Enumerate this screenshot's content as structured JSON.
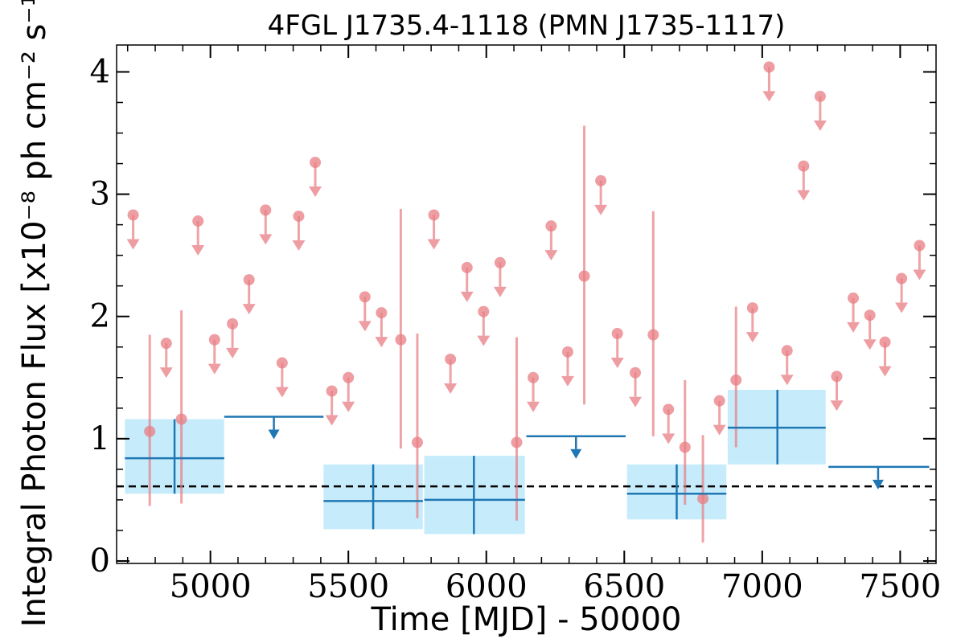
{
  "chart_data": {
    "type": "scatter",
    "title": "4FGL J1735.4-1118 (PMN J1735-1117)",
    "xlabel": "Time [MJD] - 50000",
    "ylabel": "Integral Photon Flux [x10⁻⁸ ph cm⁻² s⁻¹]",
    "xlim": [
      4660,
      7630
    ],
    "ylim": [
      -0.02,
      4.22
    ],
    "x_ticks": [
      5000,
      5500,
      6000,
      6500,
      7000,
      7500
    ],
    "x_tick_labels": [
      "5000",
      "5500",
      "6000",
      "6500",
      "7000",
      "7500"
    ],
    "y_ticks": [
      0,
      1,
      2,
      3,
      4
    ],
    "y_tick_labels": [
      "0",
      "1",
      "2",
      "3",
      "4"
    ],
    "grid": false,
    "mean_flux": 0.61,
    "colors": {
      "short_bins": "#e87d83",
      "long_bins": "#1f77b4",
      "long_bin_band": "#c6ecfb",
      "mean_line": "#000000"
    },
    "short_bin_detections": [
      {
        "x": 4780,
        "y": 1.06,
        "ylo": 0.45,
        "yhi": 1.85
      },
      {
        "x": 4895,
        "y": 1.16,
        "ylo": 0.47,
        "yhi": 2.05
      },
      {
        "x": 5690,
        "y": 1.81,
        "ylo": 0.92,
        "yhi": 2.88
      },
      {
        "x": 5750,
        "y": 0.97,
        "ylo": 0.35,
        "yhi": 1.86
      },
      {
        "x": 6110,
        "y": 0.97,
        "ylo": 0.33,
        "yhi": 1.83
      },
      {
        "x": 6355,
        "y": 2.33,
        "ylo": 1.28,
        "yhi": 3.56
      },
      {
        "x": 6605,
        "y": 1.85,
        "ylo": 1.02,
        "yhi": 2.86
      },
      {
        "x": 6720,
        "y": 0.93,
        "ylo": 0.46,
        "yhi": 1.48
      },
      {
        "x": 6785,
        "y": 0.51,
        "ylo": 0.15,
        "yhi": 1.03
      },
      {
        "x": 6905,
        "y": 1.48,
        "ylo": 0.93,
        "yhi": 2.08
      }
    ],
    "short_bin_upper_limits": [
      {
        "x": 4720,
        "y": 2.83
      },
      {
        "x": 4840,
        "y": 1.78
      },
      {
        "x": 4955,
        "y": 2.78
      },
      {
        "x": 5015,
        "y": 1.81
      },
      {
        "x": 5080,
        "y": 1.94
      },
      {
        "x": 5140,
        "y": 2.3
      },
      {
        "x": 5200,
        "y": 2.87
      },
      {
        "x": 5260,
        "y": 1.62
      },
      {
        "x": 5320,
        "y": 2.82
      },
      {
        "x": 5380,
        "y": 3.26
      },
      {
        "x": 5440,
        "y": 1.39
      },
      {
        "x": 5500,
        "y": 1.5
      },
      {
        "x": 5560,
        "y": 2.16
      },
      {
        "x": 5620,
        "y": 2.03
      },
      {
        "x": 5810,
        "y": 2.83
      },
      {
        "x": 5870,
        "y": 1.65
      },
      {
        "x": 5930,
        "y": 2.4
      },
      {
        "x": 5990,
        "y": 2.04
      },
      {
        "x": 6050,
        "y": 2.44
      },
      {
        "x": 6170,
        "y": 1.5
      },
      {
        "x": 6235,
        "y": 2.74
      },
      {
        "x": 6295,
        "y": 1.71
      },
      {
        "x": 6415,
        "y": 3.11
      },
      {
        "x": 6475,
        "y": 1.86
      },
      {
        "x": 6540,
        "y": 1.54
      },
      {
        "x": 6660,
        "y": 1.24
      },
      {
        "x": 6845,
        "y": 1.31
      },
      {
        "x": 6965,
        "y": 2.07
      },
      {
        "x": 7025,
        "y": 4.04
      },
      {
        "x": 7090,
        "y": 1.72
      },
      {
        "x": 7150,
        "y": 3.23
      },
      {
        "x": 7210,
        "y": 3.8
      },
      {
        "x": 7270,
        "y": 1.51
      },
      {
        "x": 7330,
        "y": 2.15
      },
      {
        "x": 7390,
        "y": 2.01
      },
      {
        "x": 7445,
        "y": 1.79
      },
      {
        "x": 7505,
        "y": 2.31
      },
      {
        "x": 7570,
        "y": 2.58
      }
    ],
    "long_bin_detections": [
      {
        "x": 4870,
        "xlo": 4690,
        "xhi": 5050,
        "y": 0.84,
        "ylo": 0.55,
        "yhi": 1.16
      },
      {
        "x": 5590,
        "xlo": 5410,
        "xhi": 5770,
        "y": 0.49,
        "ylo": 0.26,
        "yhi": 0.79
      },
      {
        "x": 5955,
        "xlo": 5775,
        "xhi": 6140,
        "y": 0.5,
        "ylo": 0.22,
        "yhi": 0.86
      },
      {
        "x": 6690,
        "xlo": 6510,
        "xhi": 6870,
        "y": 0.55,
        "ylo": 0.34,
        "yhi": 0.79
      },
      {
        "x": 7055,
        "xlo": 6875,
        "xhi": 7230,
        "y": 1.09,
        "ylo": 0.79,
        "yhi": 1.4
      }
    ],
    "long_bin_upper_limits": [
      {
        "x": 5230,
        "xlo": 5050,
        "xhi": 5410,
        "y": 1.18
      },
      {
        "x": 6325,
        "xlo": 6145,
        "xhi": 6505,
        "y": 1.02
      },
      {
        "x": 7420,
        "xlo": 7240,
        "xhi": 7605,
        "y": 0.77
      }
    ]
  }
}
